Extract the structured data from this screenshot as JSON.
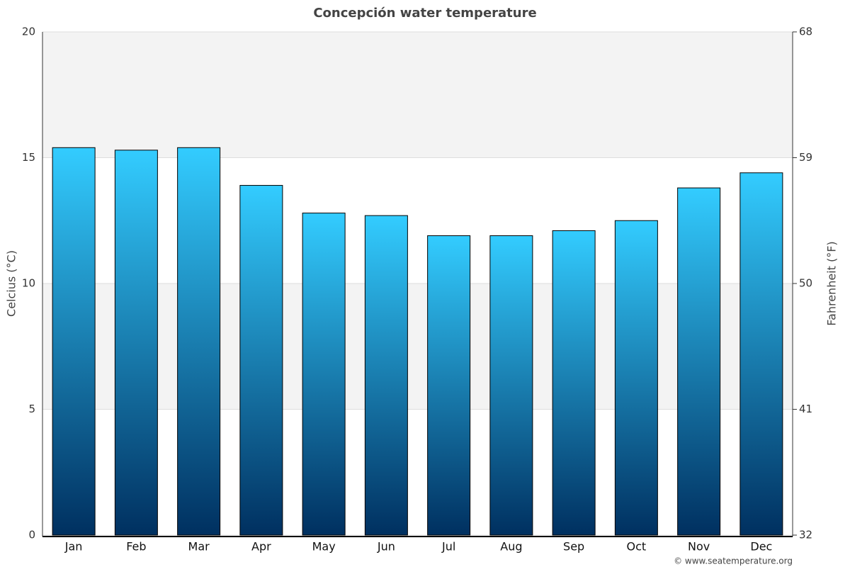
{
  "chart_data": {
    "type": "bar",
    "title": "Concepción water temperature",
    "categories": [
      "Jan",
      "Feb",
      "Mar",
      "Apr",
      "May",
      "Jun",
      "Jul",
      "Aug",
      "Sep",
      "Oct",
      "Nov",
      "Dec"
    ],
    "values": [
      15.4,
      15.3,
      15.4,
      13.9,
      12.8,
      12.7,
      11.9,
      11.9,
      12.1,
      12.5,
      13.8,
      14.4
    ],
    "gradient": [
      "#33ccff",
      "#003060"
    ],
    "ylim": [
      0,
      20
    ],
    "yticks": [
      0,
      5,
      10,
      15,
      20
    ],
    "y2lim": [
      32,
      68
    ],
    "y2ticks": [
      32,
      41,
      50,
      59,
      68
    ],
    "ylabel": "Celcius (°C)",
    "y2label": "Fahrenheit (°F)",
    "band_color": "#f3f3f3",
    "footer": "© www.seatemperature.org"
  }
}
